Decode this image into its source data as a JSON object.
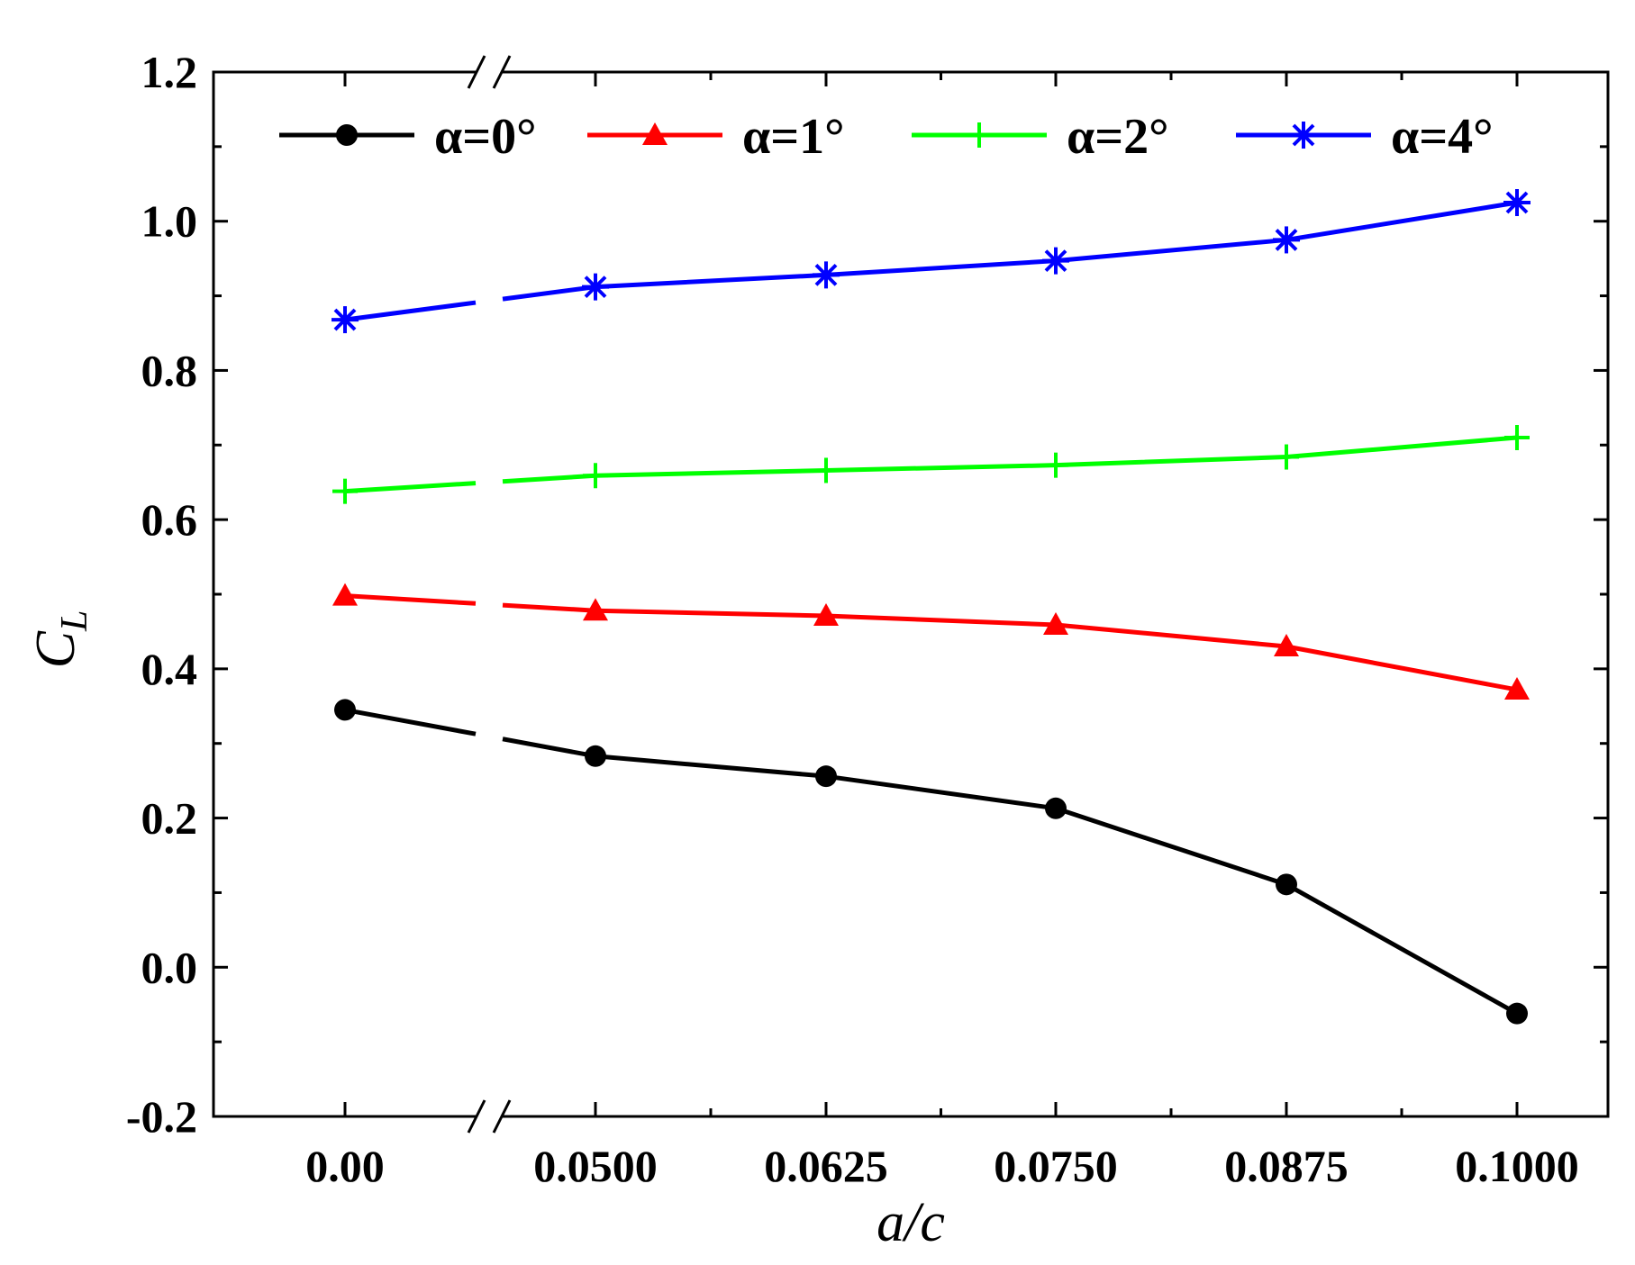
{
  "chart_data": {
    "type": "line",
    "title": "",
    "xlabel": "a/c",
    "ylabel_main": "C",
    "ylabel_sub": "L",
    "categories": [
      "0.00",
      "0.0500",
      "0.0625",
      "0.0750",
      "0.0875",
      "0.1000"
    ],
    "ylim": [
      -0.2,
      1.2
    ],
    "yticks": [
      -0.2,
      0.0,
      0.2,
      0.4,
      0.6,
      0.8,
      1.0,
      1.2
    ],
    "ytick_labels": [
      "-0.2",
      "0.0",
      "0.2",
      "0.4",
      "0.6",
      "0.8",
      "1.0",
      "1.2"
    ],
    "axis_break": "between 0.00 and 0.0500",
    "legend_position": "top",
    "series": [
      {
        "name": "α=0°",
        "color": "#000000",
        "marker": "circle",
        "values": [
          0.345,
          0.283,
          0.256,
          0.213,
          0.111,
          -0.062
        ]
      },
      {
        "name": "α=1°",
        "color": "#ff0000",
        "marker": "triangle",
        "values": [
          0.498,
          0.478,
          0.471,
          0.459,
          0.43,
          0.372
        ]
      },
      {
        "name": "α=2°",
        "color": "#00ff00",
        "marker": "plus",
        "values": [
          0.638,
          0.659,
          0.666,
          0.673,
          0.684,
          0.71
        ]
      },
      {
        "name": "α=4°",
        "color": "#0000ff",
        "marker": "asterisk",
        "values": [
          0.868,
          0.912,
          0.928,
          0.947,
          0.975,
          1.025
        ]
      }
    ]
  }
}
